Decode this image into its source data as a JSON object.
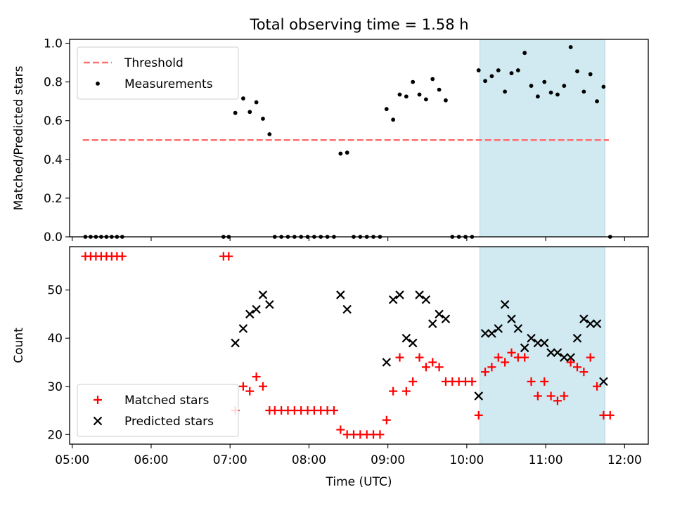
{
  "figure": {
    "title": "Total observing time = 1.58 h"
  },
  "chart_data": [
    {
      "type": "scatter",
      "panel": "top",
      "ylabel": "Matched/Predicted stars",
      "ylim": [
        0,
        1.02
      ],
      "yticks": [
        "0.0",
        "0.2",
        "0.4",
        "0.6",
        "0.8",
        "1.0"
      ],
      "ytick_values": [
        0,
        0.2,
        0.4,
        0.6,
        0.8,
        1.0
      ],
      "xlim": [
        "04:58",
        "12:18"
      ],
      "xticks": [
        "05:00",
        "06:00",
        "07:00",
        "08:00",
        "09:00",
        "10:00",
        "11:00",
        "12:00"
      ],
      "highlight_span": {
        "start": "10:10",
        "end": "11:45",
        "color": "#d1e9f0"
      },
      "threshold": {
        "name": "Threshold",
        "value": 0.5,
        "x_start": "05:08",
        "x_end": "11:48",
        "color": "#ff7070",
        "style": "dashed"
      },
      "legend": {
        "position": "top-left",
        "entries": [
          "Threshold",
          "Measurements"
        ]
      },
      "series": [
        {
          "name": "Measurements",
          "marker": "dot",
          "color": "#000000",
          "points": [
            [
              "05:10",
              0
            ],
            [
              "05:14",
              0
            ],
            [
              "05:18",
              0
            ],
            [
              "05:22",
              0
            ],
            [
              "05:26",
              0
            ],
            [
              "05:30",
              0
            ],
            [
              "05:34",
              0
            ],
            [
              "05:38",
              0
            ],
            [
              "06:55",
              0
            ],
            [
              "06:59",
              0
            ],
            [
              "07:04",
              0.64
            ],
            [
              "07:10",
              0.715
            ],
            [
              "07:15",
              0.645
            ],
            [
              "07:20",
              0.695
            ],
            [
              "07:25",
              0.61
            ],
            [
              "07:30",
              0.53
            ],
            [
              "07:34",
              0
            ],
            [
              "07:39",
              0
            ],
            [
              "07:44",
              0
            ],
            [
              "07:49",
              0
            ],
            [
              "07:54",
              0
            ],
            [
              "07:59",
              0
            ],
            [
              "08:04",
              0
            ],
            [
              "08:09",
              0
            ],
            [
              "08:14",
              0
            ],
            [
              "08:19",
              0
            ],
            [
              "08:24",
              0.43
            ],
            [
              "08:29",
              0.435
            ],
            [
              "08:34",
              0
            ],
            [
              "08:39",
              0
            ],
            [
              "08:44",
              0
            ],
            [
              "08:49",
              0
            ],
            [
              "08:54",
              0
            ],
            [
              "08:59",
              0.66
            ],
            [
              "09:04",
              0.605
            ],
            [
              "09:09",
              0.735
            ],
            [
              "09:14",
              0.725
            ],
            [
              "09:19",
              0.8
            ],
            [
              "09:24",
              0.735
            ],
            [
              "09:29",
              0.71
            ],
            [
              "09:34",
              0.815
            ],
            [
              "09:39",
              0.76
            ],
            [
              "09:44",
              0.705
            ],
            [
              "09:49",
              0
            ],
            [
              "09:54",
              0
            ],
            [
              "09:59",
              0
            ],
            [
              "10:04",
              0
            ],
            [
              "10:09",
              0.86
            ],
            [
              "10:14",
              0.805
            ],
            [
              "10:19",
              0.83
            ],
            [
              "10:24",
              0.86
            ],
            [
              "10:29",
              0.75
            ],
            [
              "10:34",
              0.845
            ],
            [
              "10:39",
              0.86
            ],
            [
              "10:44",
              0.95
            ],
            [
              "10:49",
              0.78
            ],
            [
              "10:54",
              0.725
            ],
            [
              "10:59",
              0.8
            ],
            [
              "11:04",
              0.745
            ],
            [
              "11:09",
              0.735
            ],
            [
              "11:14",
              0.78
            ],
            [
              "11:19",
              0.98
            ],
            [
              "11:24",
              0.855
            ],
            [
              "11:29",
              0.75
            ],
            [
              "11:34",
              0.84
            ],
            [
              "11:39",
              0.7
            ],
            [
              "11:44",
              0.775
            ],
            [
              "11:49",
              0
            ]
          ]
        }
      ]
    },
    {
      "type": "scatter",
      "panel": "bottom",
      "xlabel": "Time (UTC)",
      "ylabel": "Count",
      "ylim": [
        18,
        59
      ],
      "yticks": [
        "20",
        "30",
        "40",
        "50"
      ],
      "ytick_values": [
        20,
        30,
        40,
        50
      ],
      "xlim": [
        "04:58",
        "12:18"
      ],
      "xticks": [
        "05:00",
        "06:00",
        "07:00",
        "08:00",
        "09:00",
        "10:00",
        "11:00",
        "12:00"
      ],
      "highlight_span": {
        "start": "10:10",
        "end": "11:45",
        "color": "#d1e9f0"
      },
      "legend": {
        "position": "bottom-left",
        "entries": [
          "Matched stars",
          "Predicted stars"
        ]
      },
      "series": [
        {
          "name": "Matched stars",
          "marker": "plus",
          "color": "#ff0000",
          "points": [
            [
              "05:10",
              57
            ],
            [
              "05:14",
              57
            ],
            [
              "05:18",
              57
            ],
            [
              "05:22",
              57
            ],
            [
              "05:26",
              57
            ],
            [
              "05:30",
              57
            ],
            [
              "05:34",
              57
            ],
            [
              "05:38",
              57
            ],
            [
              "06:55",
              57
            ],
            [
              "06:59",
              57
            ],
            [
              "07:04",
              25
            ],
            [
              "07:10",
              30
            ],
            [
              "07:15",
              29
            ],
            [
              "07:20",
              32
            ],
            [
              "07:25",
              30
            ],
            [
              "07:30",
              25
            ],
            [
              "07:34",
              25
            ],
            [
              "07:39",
              25
            ],
            [
              "07:44",
              25
            ],
            [
              "07:49",
              25
            ],
            [
              "07:54",
              25
            ],
            [
              "07:59",
              25
            ],
            [
              "08:04",
              25
            ],
            [
              "08:09",
              25
            ],
            [
              "08:14",
              25
            ],
            [
              "08:19",
              25
            ],
            [
              "08:24",
              21
            ],
            [
              "08:29",
              20
            ],
            [
              "08:34",
              20
            ],
            [
              "08:39",
              20
            ],
            [
              "08:44",
              20
            ],
            [
              "08:49",
              20
            ],
            [
              "08:54",
              20
            ],
            [
              "08:59",
              23
            ],
            [
              "09:04",
              29
            ],
            [
              "09:09",
              36
            ],
            [
              "09:14",
              29
            ],
            [
              "09:19",
              31
            ],
            [
              "09:24",
              36
            ],
            [
              "09:29",
              34
            ],
            [
              "09:34",
              35
            ],
            [
              "09:39",
              34
            ],
            [
              "09:44",
              31
            ],
            [
              "09:49",
              31
            ],
            [
              "09:54",
              31
            ],
            [
              "09:59",
              31
            ],
            [
              "10:04",
              31
            ],
            [
              "10:09",
              24
            ],
            [
              "10:14",
              33
            ],
            [
              "10:19",
              34
            ],
            [
              "10:24",
              36
            ],
            [
              "10:29",
              35
            ],
            [
              "10:34",
              37
            ],
            [
              "10:39",
              36
            ],
            [
              "10:44",
              36
            ],
            [
              "10:49",
              31
            ],
            [
              "10:54",
              28
            ],
            [
              "10:59",
              31
            ],
            [
              "11:04",
              28
            ],
            [
              "11:09",
              27
            ],
            [
              "11:14",
              28
            ],
            [
              "11:19",
              35
            ],
            [
              "11:24",
              34
            ],
            [
              "11:29",
              33
            ],
            [
              "11:34",
              36
            ],
            [
              "11:39",
              30
            ],
            [
              "11:44",
              24
            ],
            [
              "11:49",
              24
            ]
          ]
        },
        {
          "name": "Predicted stars",
          "marker": "x",
          "color": "#000000",
          "points": [
            [
              "07:04",
              39
            ],
            [
              "07:10",
              42
            ],
            [
              "07:15",
              45
            ],
            [
              "07:20",
              46
            ],
            [
              "07:25",
              49
            ],
            [
              "07:30",
              47
            ],
            [
              "08:24",
              49
            ],
            [
              "08:29",
              46
            ],
            [
              "08:59",
              35
            ],
            [
              "09:04",
              48
            ],
            [
              "09:09",
              49
            ],
            [
              "09:14",
              40
            ],
            [
              "09:19",
              39
            ],
            [
              "09:24",
              49
            ],
            [
              "09:29",
              48
            ],
            [
              "09:34",
              43
            ],
            [
              "09:39",
              45
            ],
            [
              "09:44",
              44
            ],
            [
              "10:09",
              28
            ],
            [
              "10:14",
              41
            ],
            [
              "10:19",
              41
            ],
            [
              "10:24",
              42
            ],
            [
              "10:29",
              47
            ],
            [
              "10:34",
              44
            ],
            [
              "10:39",
              42
            ],
            [
              "10:44",
              38
            ],
            [
              "10:49",
              40
            ],
            [
              "10:54",
              39
            ],
            [
              "10:59",
              39
            ],
            [
              "11:04",
              37
            ],
            [
              "11:09",
              37
            ],
            [
              "11:14",
              36
            ],
            [
              "11:19",
              36
            ],
            [
              "11:24",
              40
            ],
            [
              "11:29",
              44
            ],
            [
              "11:34",
              43
            ],
            [
              "11:39",
              43
            ],
            [
              "11:44",
              31
            ]
          ]
        }
      ]
    }
  ]
}
